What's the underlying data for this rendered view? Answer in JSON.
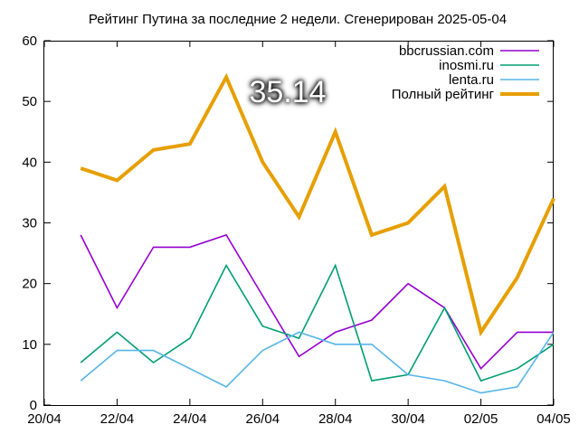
{
  "chart_data": {
    "type": "line",
    "title": "Рейтинг Путина за последние 2 недели. Сгенерирован 2025-05-04",
    "annotation": "35.14",
    "x_tick_labels": [
      "20/04",
      "22/04",
      "24/04",
      "26/04",
      "28/04",
      "30/04",
      "02/05",
      "04/05"
    ],
    "y_ticks": [
      0,
      10,
      20,
      30,
      40,
      50,
      60
    ],
    "x": [
      "21/04",
      "22/04",
      "23/04",
      "24/04",
      "25/04",
      "26/04",
      "27/04",
      "28/04",
      "29/04",
      "30/04",
      "01/05",
      "02/05",
      "03/05",
      "04/05"
    ],
    "ylim": [
      0,
      60
    ],
    "legend_position": "top-right",
    "grid": false,
    "series": [
      {
        "name": "bbcrussian.com",
        "color": "#9400d3",
        "values": [
          28,
          16,
          26,
          26,
          28,
          18,
          8,
          12,
          14,
          20,
          16,
          6,
          12,
          12
        ]
      },
      {
        "name": "inosmi.ru",
        "color": "#009e73",
        "values": [
          7,
          12,
          7,
          11,
          23,
          13,
          11,
          23,
          4,
          5,
          16,
          4,
          6,
          10
        ]
      },
      {
        "name": "lenta.ru",
        "color": "#56b4e9",
        "values": [
          4,
          9,
          9,
          6,
          3,
          9,
          12,
          10,
          10,
          5,
          4,
          2,
          3,
          12
        ]
      },
      {
        "name": "Полный рейтинг",
        "color": "#e69f00",
        "values": [
          39,
          37,
          42,
          43,
          54,
          40,
          31,
          45,
          28,
          30,
          36,
          12,
          21,
          34
        ]
      }
    ]
  }
}
